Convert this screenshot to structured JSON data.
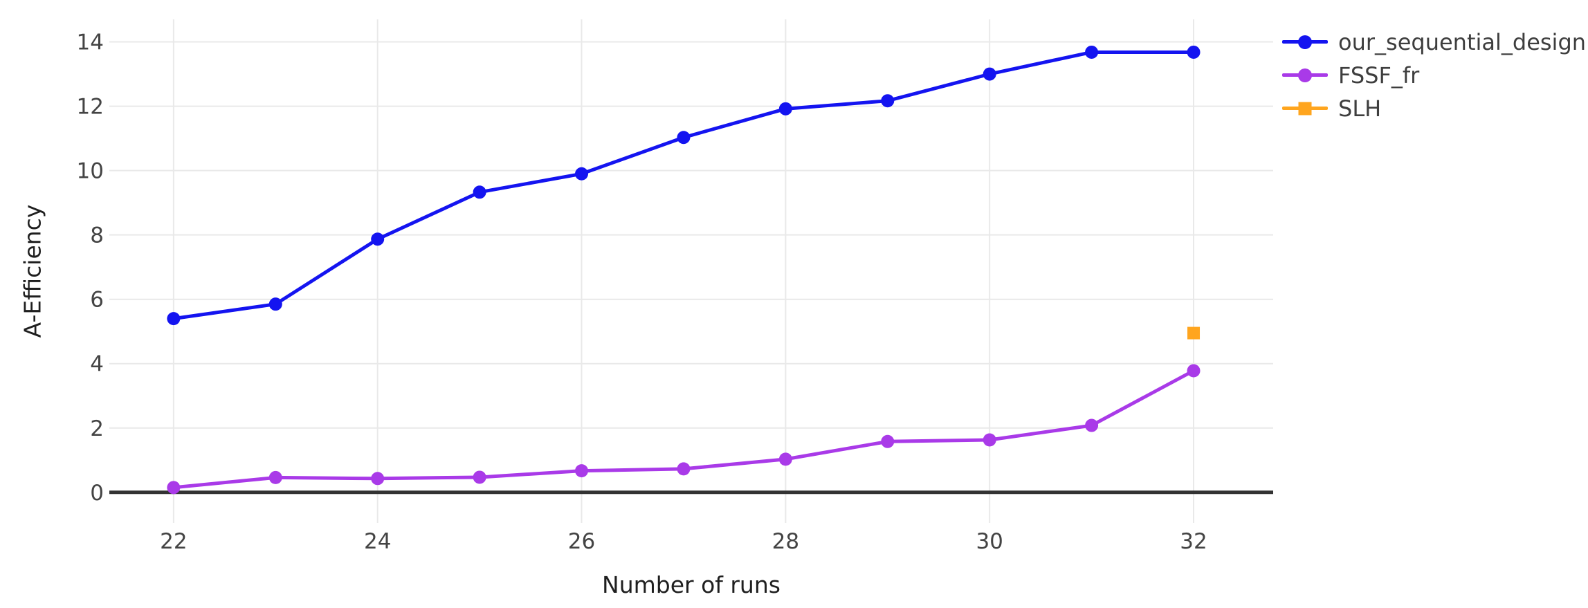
{
  "figure": {
    "background": "#FFFFFF"
  },
  "chart_data": {
    "type": "line",
    "title": "",
    "xlabel": "Number of runs",
    "ylabel": "A-Efficiency",
    "x": [
      22,
      23,
      24,
      25,
      26,
      27,
      28,
      29,
      30,
      31,
      32
    ],
    "series": [
      {
        "name": "our_sequential_design",
        "color": "#1414F0",
        "marker": "circle",
        "values": [
          5.4,
          5.85,
          7.87,
          9.33,
          9.9,
          11.03,
          11.92,
          12.17,
          13.0,
          13.68,
          13.68
        ]
      },
      {
        "name": "FSSF_fr",
        "color": "#A93AE8",
        "marker": "circle",
        "values": [
          0.15,
          0.46,
          0.43,
          0.47,
          0.67,
          0.73,
          1.03,
          1.58,
          1.63,
          2.08,
          3.78
        ]
      },
      {
        "name": "SLH",
        "color": "#FFA51E",
        "marker": "square",
        "x": [
          32
        ],
        "values": [
          4.95
        ]
      }
    ],
    "xticks": [
      22,
      24,
      26,
      28,
      30,
      32
    ],
    "yticks": [
      0,
      2,
      4,
      6,
      8,
      10,
      12,
      14
    ],
    "xlim": [
      21.37,
      32.78
    ],
    "ylim": [
      -0.95,
      14.7
    ],
    "grid": true,
    "legend_position": "right",
    "colors": {
      "grid": "#E9E9E9",
      "zeroline": "#333333",
      "tick_text": "#444444",
      "axis_title_text": "#1F1F1F",
      "legend_text": "#3E3E3E"
    }
  }
}
